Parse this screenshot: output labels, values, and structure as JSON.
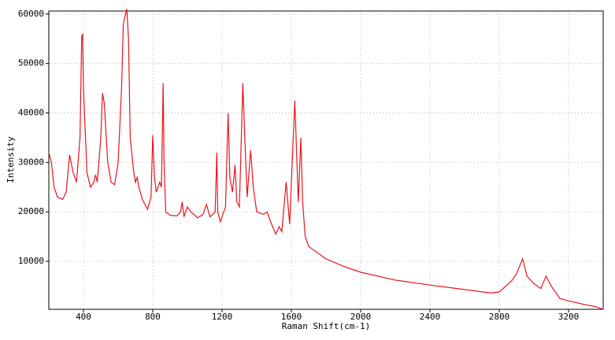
{
  "chart_data": {
    "type": "line",
    "x_label": "Raman Shift(cm-1)",
    "y_label": "Intensity",
    "x": [
      200,
      215,
      230,
      250,
      280,
      300,
      320,
      340,
      360,
      380,
      390,
      395,
      400,
      420,
      440,
      460,
      470,
      480,
      500,
      510,
      520,
      540,
      560,
      580,
      600,
      620,
      630,
      650,
      660,
      670,
      690,
      700,
      710,
      720,
      740,
      770,
      790,
      800,
      810,
      820,
      840,
      850,
      860,
      865,
      875,
      900,
      940,
      960,
      970,
      980,
      1000,
      1020,
      1060,
      1090,
      1110,
      1130,
      1160,
      1170,
      1175,
      1190,
      1220,
      1235,
      1245,
      1260,
      1275,
      1285,
      1300,
      1320,
      1330,
      1345,
      1365,
      1380,
      1400,
      1440,
      1460,
      1480,
      1510,
      1530,
      1545,
      1570,
      1590,
      1620,
      1640,
      1655,
      1665,
      1680,
      1700,
      1800,
      1900,
      2000,
      2200,
      2400,
      2600,
      2750,
      2800,
      2870,
      2900,
      2935,
      2960,
      3000,
      3040,
      3070,
      3100,
      3150,
      3200,
      3300,
      3350,
      3400
    ],
    "series": [
      {
        "name": "Intensity",
        "color": "#e8141c",
        "values": [
          32000,
          30000,
          25000,
          23000,
          22500,
          24000,
          31500,
          28000,
          26000,
          35000,
          55500,
          56000,
          45000,
          28000,
          25000,
          26000,
          27500,
          26000,
          35000,
          44000,
          42000,
          30000,
          26000,
          25500,
          30000,
          45000,
          58000,
          61000,
          55000,
          35000,
          28000,
          26000,
          27000,
          25000,
          22500,
          20500,
          23000,
          35500,
          27000,
          24000,
          26000,
          25000,
          46000,
          30000,
          20000,
          19300,
          19200,
          20000,
          22000,
          19000,
          21000,
          20000,
          18800,
          19500,
          21500,
          19000,
          20000,
          32000,
          20000,
          18000,
          21000,
          40000,
          27000,
          24000,
          29500,
          22000,
          21000,
          46000,
          36000,
          23000,
          32500,
          25000,
          20000,
          19500,
          20000,
          18000,
          15500,
          17000,
          16000,
          26000,
          17500,
          42500,
          22000,
          35000,
          22000,
          15000,
          13000,
          10500,
          9000,
          7800,
          6200,
          5200,
          4300,
          3600,
          3800,
          6000,
          7500,
          10500,
          7000,
          5500,
          4500,
          7000,
          5000,
          2500,
          2000,
          1200,
          900,
          300
        ]
      }
    ],
    "xlim": [
      200,
      3400
    ],
    "ylim": [
      300,
      60600
    ],
    "xticks": [
      400,
      800,
      1200,
      1600,
      2000,
      2400,
      2800,
      3200
    ],
    "yticks": [
      10000,
      20000,
      30000,
      40000,
      50000,
      60000
    ],
    "grid": true
  }
}
